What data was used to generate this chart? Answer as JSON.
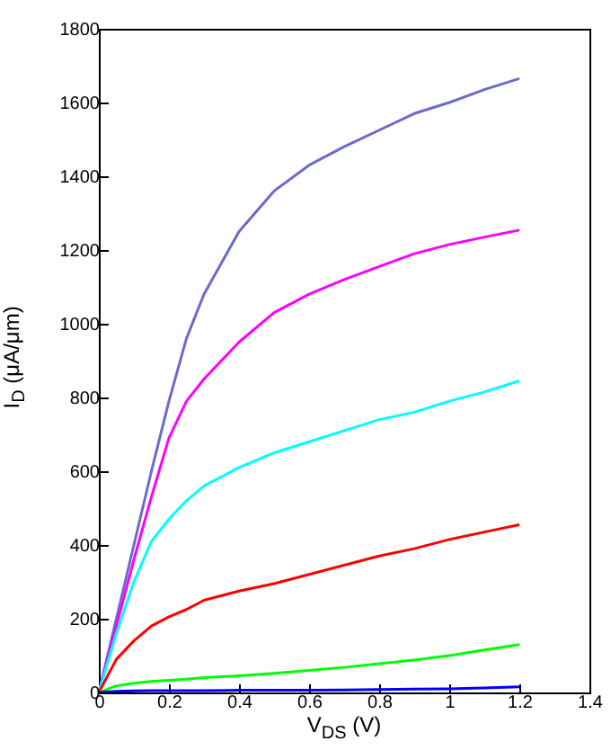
{
  "chart_data": {
    "type": "line",
    "xlabel": "V$_{DS}$ (V)",
    "ylabel": "I$_{D}$ (μA/μm)",
    "x": [
      0,
      0.05,
      0.1,
      0.15,
      0.2,
      0.25,
      0.3,
      0.4,
      0.5,
      0.6,
      0.7,
      0.8,
      0.9,
      1.0,
      1.1,
      1.2
    ],
    "series": [
      {
        "color": "#6b6bcc",
        "values": [
          0,
          200,
          400,
          600,
          790,
          960,
          1080,
          1250,
          1360,
          1430,
          1480,
          1525,
          1570,
          1600,
          1635,
          1665
        ]
      },
      {
        "color": "#ff00ff",
        "values": [
          0,
          180,
          360,
          530,
          690,
          790,
          850,
          950,
          1030,
          1080,
          1120,
          1155,
          1190,
          1215,
          1235,
          1254
        ]
      },
      {
        "color": "#00ffff",
        "values": [
          0,
          160,
          300,
          410,
          470,
          520,
          560,
          610,
          650,
          680,
          710,
          740,
          760,
          790,
          815,
          845
        ]
      },
      {
        "color": "#ff0000",
        "values": [
          0,
          90,
          140,
          180,
          205,
          225,
          250,
          275,
          295,
          320,
          345,
          370,
          390,
          415,
          435,
          455
        ]
      },
      {
        "color": "#00ff00",
        "values": [
          0,
          18,
          25,
          30,
          33,
          36,
          40,
          45,
          52,
          60,
          68,
          78,
          88,
          100,
          115,
          130
        ]
      },
      {
        "color": "#0000ff",
        "values": [
          0,
          3,
          4,
          5,
          5,
          5,
          5,
          6,
          6,
          6,
          7,
          8,
          9,
          10,
          12,
          15
        ]
      }
    ],
    "xlim": [
      0,
      1.4
    ],
    "xticks": [
      0,
      0.2,
      0.4,
      0.6,
      0.8,
      1,
      1.2,
      1.4
    ],
    "ylim": [
      0,
      1800
    ],
    "yticks": [
      0,
      200,
      400,
      600,
      800,
      1000,
      1200,
      1400,
      1600,
      1800
    ]
  }
}
